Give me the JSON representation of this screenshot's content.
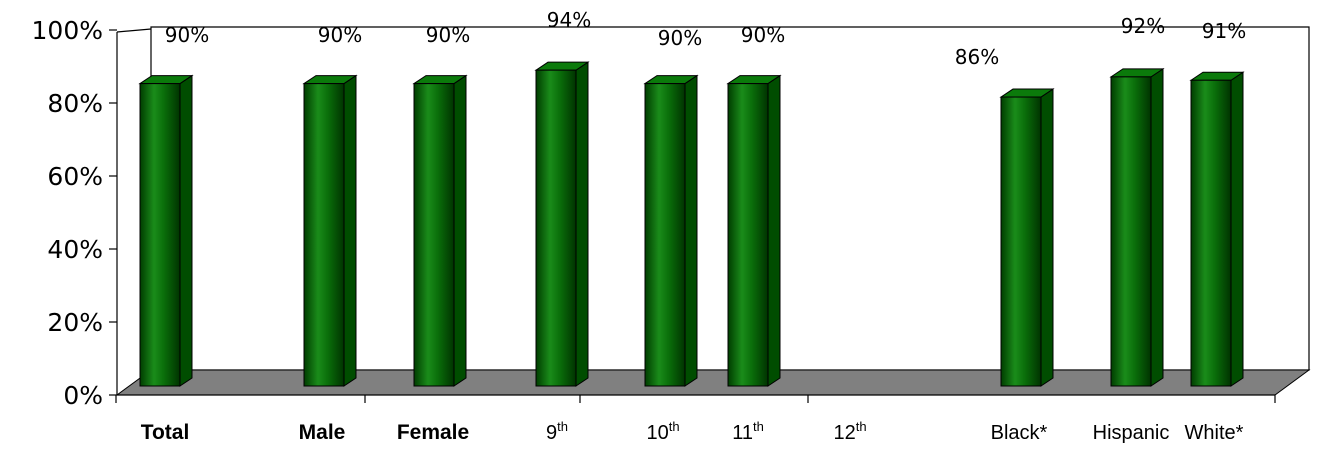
{
  "chart_data": {
    "type": "bar",
    "title": "",
    "xlabel": "",
    "ylabel": "",
    "ylim": [
      0,
      100
    ],
    "y_ticks": [
      "0%",
      "20%",
      "40%",
      "60%",
      "80%",
      "100%"
    ],
    "grid": false,
    "bar_color": "#0a6e0a",
    "floor_color": "#808080",
    "categories": [
      {
        "base": "Total",
        "sup": "",
        "bold": true
      },
      {
        "base": "Male",
        "sup": "",
        "bold": true
      },
      {
        "base": "Female",
        "sup": "",
        "bold": true
      },
      {
        "base": "9",
        "sup": "th",
        "bold": false
      },
      {
        "base": "10",
        "sup": "th",
        "bold": false
      },
      {
        "base": "11",
        "sup": "th",
        "bold": false
      },
      {
        "base": "12",
        "sup": "th",
        "bold": false
      },
      {
        "base": "Black*",
        "sup": "",
        "bold": false
      },
      {
        "base": "Hispanic",
        "sup": "",
        "bold": false
      },
      {
        "base": "White*",
        "sup": "",
        "bold": false
      }
    ],
    "values": [
      90,
      90,
      90,
      94,
      90,
      90,
      null,
      86,
      92,
      91
    ],
    "data_labels": [
      "90%",
      "90%",
      "90%",
      "94%",
      "90%",
      "90%",
      "",
      "86%",
      "92%",
      "91%"
    ]
  }
}
